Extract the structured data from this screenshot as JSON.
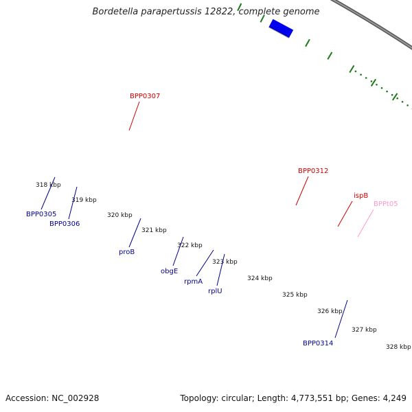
{
  "title": "Bordetella parapertussis 12822, complete genome",
  "footer": {
    "accession": "Accession: NC_002928",
    "summary": "Topology: circular; Length: 4,773,551 bp; Genes: 4,249"
  },
  "colors": {
    "backbone": "#7a7a7a",
    "tick": "#1a7a1a",
    "blue": "#0000ee",
    "red": "#ee0000",
    "gray": "#bbbbbb",
    "orange": "#ff8c00",
    "magenta": "#ff1493",
    "steel": "#4a86b8",
    "salmon": "#f08a8a",
    "pink": "#ff9fc8",
    "label_blue": "#00008b",
    "label_red": "#cc0000",
    "label_pink": "#ff99cc"
  },
  "scale_labels": [
    "318 kbp",
    "319 kbp",
    "320 kbp",
    "321 kbp",
    "322 kbp",
    "323 kbp",
    "324 kbp",
    "325 kbp",
    "326 kbp",
    "327 kbp",
    "328 kbp"
  ],
  "gene_labels": [
    {
      "text": "BPP0307",
      "color": "label_red"
    },
    {
      "text": "BPP0312",
      "color": "label_red"
    },
    {
      "text": "ispB",
      "color": "label_red"
    },
    {
      "text": "BPPt05",
      "color": "label_pink"
    },
    {
      "text": "BPP0305",
      "color": "label_blue"
    },
    {
      "text": "BPP0306",
      "color": "label_blue"
    },
    {
      "text": "proB",
      "color": "label_blue"
    },
    {
      "text": "obgE",
      "color": "label_blue"
    },
    {
      "text": "rpmA",
      "color": "label_blue"
    },
    {
      "text": "rplU",
      "color": "label_blue"
    },
    {
      "text": "BPP0314",
      "color": "label_blue"
    }
  ]
}
